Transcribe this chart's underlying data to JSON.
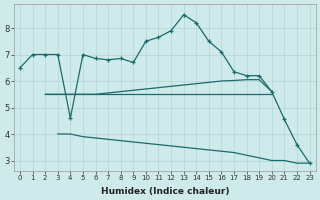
{
  "xlabel": "Humidex (Indice chaleur)",
  "background_color": "#ceeaea",
  "grid_color": "#b8d8d8",
  "line_color": "#1a6b6b",
  "xlim": [
    -0.5,
    23.5
  ],
  "ylim": [
    2.6,
    8.9
  ],
  "x_ticks": [
    0,
    1,
    2,
    3,
    4,
    5,
    6,
    7,
    8,
    9,
    10,
    11,
    12,
    13,
    14,
    15,
    16,
    17,
    18,
    19,
    20,
    21,
    22,
    23
  ],
  "y_ticks": [
    3,
    4,
    5,
    6,
    7,
    8
  ],
  "line1_x": [
    0,
    1,
    2,
    3,
    4,
    5,
    6,
    7,
    8,
    9,
    10,
    11,
    12,
    13,
    14,
    15,
    16,
    17,
    18,
    19,
    20,
    21,
    22,
    23
  ],
  "line1_y": [
    6.5,
    7.0,
    7.0,
    7.0,
    4.6,
    7.0,
    6.85,
    6.8,
    6.85,
    6.7,
    7.5,
    7.65,
    7.9,
    8.5,
    8.2,
    7.5,
    7.1,
    6.35,
    6.2,
    6.2,
    5.6,
    4.55,
    3.6,
    2.9
  ],
  "line2_x": [
    2,
    3,
    4,
    5,
    6,
    7,
    8,
    9,
    10,
    11,
    12,
    13,
    14,
    15,
    16,
    17,
    18,
    19,
    20
  ],
  "line2_y": [
    5.5,
    5.5,
    5.5,
    5.5,
    5.5,
    5.55,
    5.6,
    5.65,
    5.7,
    5.75,
    5.8,
    5.85,
    5.9,
    5.95,
    6.0,
    6.02,
    6.05,
    6.05,
    5.6
  ],
  "line3_x": [
    2,
    3,
    4,
    5,
    6,
    7,
    8,
    9,
    10,
    11,
    12,
    13,
    14,
    15,
    16,
    17,
    18,
    19,
    20
  ],
  "line3_y": [
    5.5,
    5.5,
    5.5,
    5.5,
    5.5,
    5.5,
    5.5,
    5.5,
    5.5,
    5.5,
    5.5,
    5.5,
    5.5,
    5.5,
    5.5,
    5.5,
    5.5,
    5.5,
    5.5
  ],
  "line4_x": [
    3,
    4,
    5,
    6,
    7,
    8,
    9,
    10,
    11,
    12,
    13,
    14,
    15,
    16,
    17,
    18,
    19,
    20,
    21,
    22,
    23
  ],
  "line4_y": [
    4.0,
    4.0,
    3.9,
    3.85,
    3.8,
    3.75,
    3.7,
    3.65,
    3.6,
    3.55,
    3.5,
    3.45,
    3.4,
    3.35,
    3.3,
    3.2,
    3.1,
    3.0,
    3.0,
    2.9,
    2.9
  ],
  "line1_marker_x": [
    0,
    1,
    2,
    3,
    4,
    5,
    6,
    7,
    8,
    9,
    10,
    11,
    12,
    13,
    14,
    15,
    16,
    17,
    18,
    19,
    20,
    21,
    22,
    23
  ],
  "line1_marker_y": [
    6.5,
    7.0,
    7.0,
    7.0,
    4.6,
    7.0,
    6.85,
    6.8,
    6.85,
    6.7,
    7.5,
    7.65,
    7.9,
    8.5,
    8.2,
    7.5,
    7.1,
    6.35,
    6.2,
    6.2,
    5.6,
    4.55,
    3.6,
    2.9
  ]
}
